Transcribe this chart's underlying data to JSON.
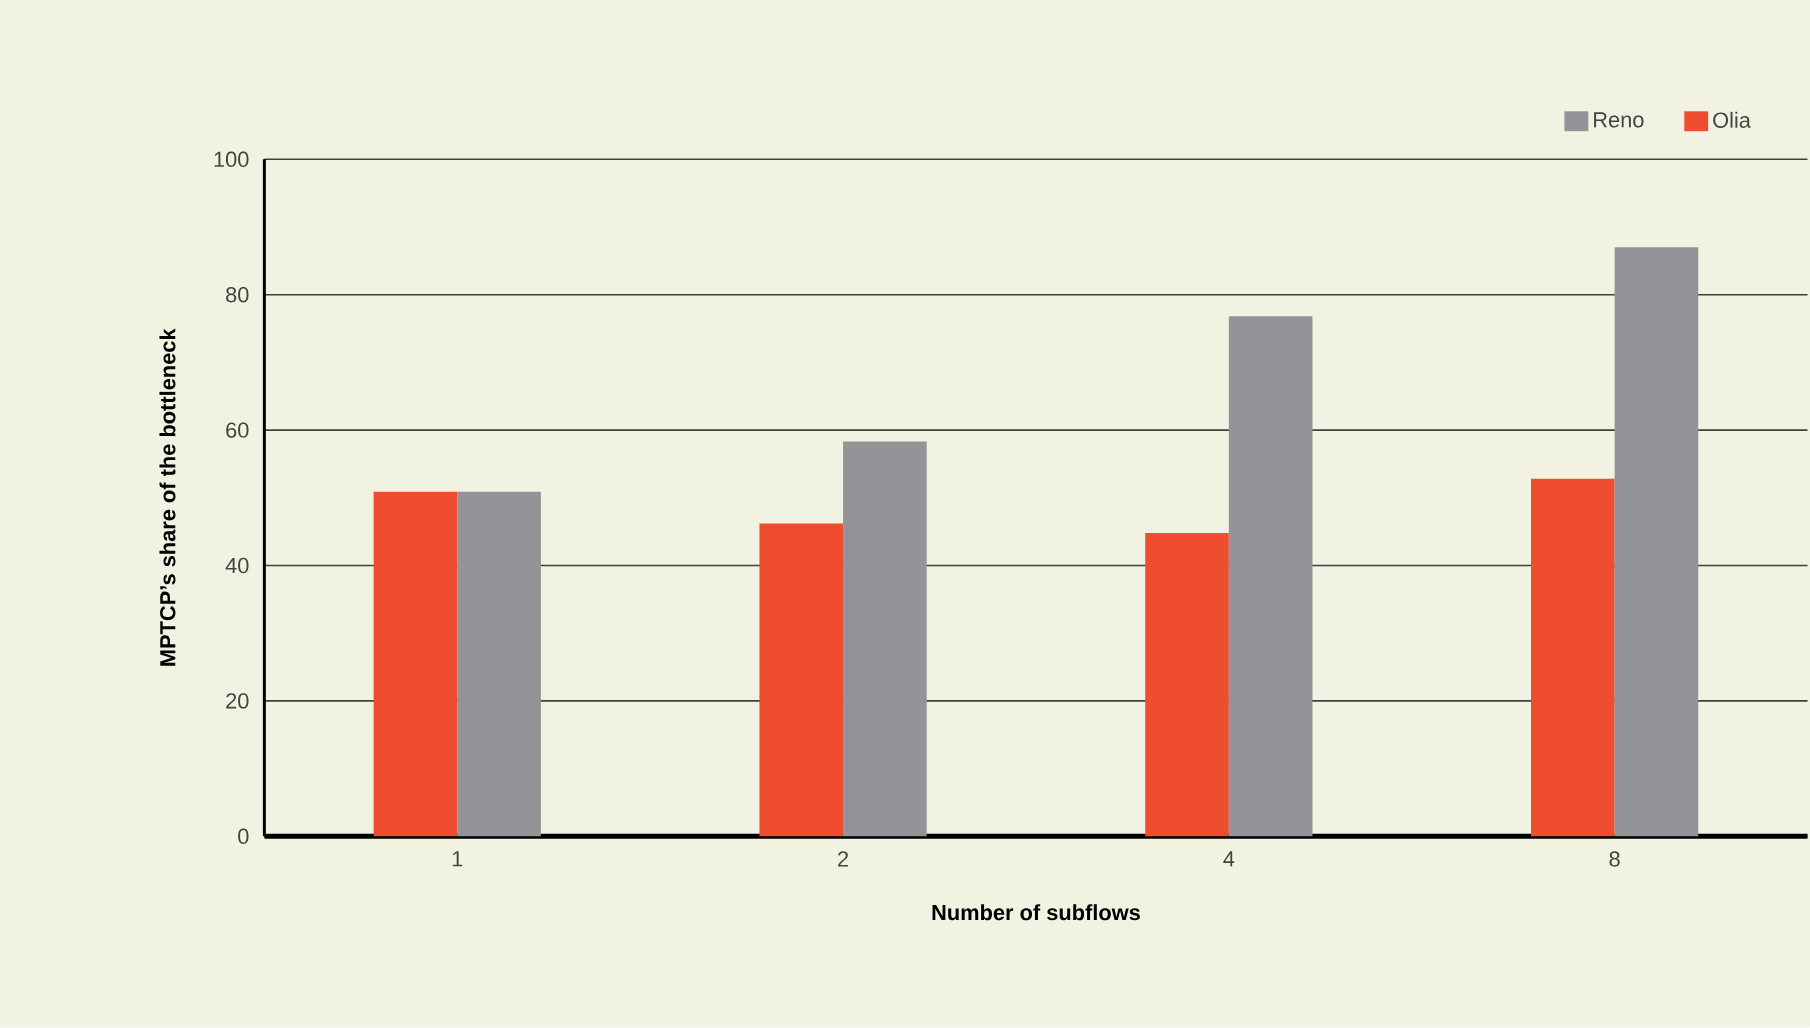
{
  "chart_data": {
    "type": "bar",
    "xlabel": "Number of subflows",
    "ylabel": "MPTCP’s share of the bottleneck",
    "categories": [
      "1",
      "2",
      "4",
      "8"
    ],
    "series": [
      {
        "name": "Olia",
        "color": "#ee4e2f",
        "values": [
          50.9,
          46.2,
          44.8,
          52.8
        ]
      },
      {
        "name": "Reno",
        "color": "#939498",
        "values": [
          50.9,
          58.3,
          76.8,
          87.0
        ]
      }
    ],
    "ylim": [
      0,
      100
    ],
    "yticks": [
      0,
      20,
      40,
      60,
      80,
      100
    ],
    "grid": "y",
    "legend": "top right"
  }
}
